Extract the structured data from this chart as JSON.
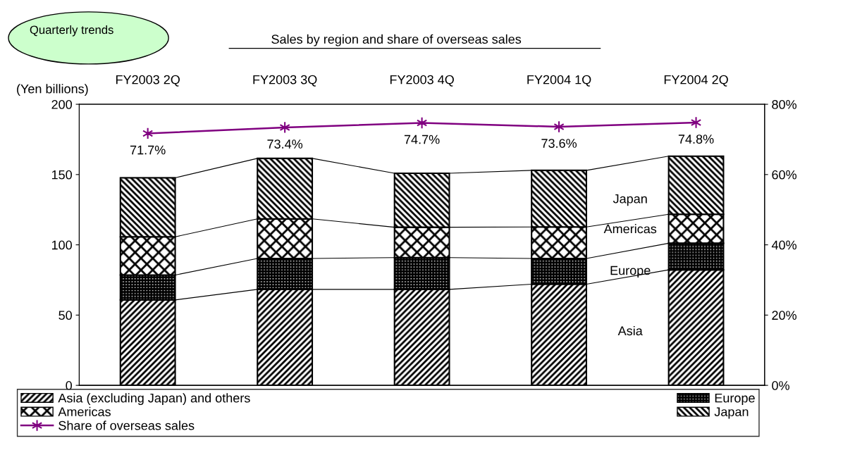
{
  "chart_data": {
    "type": "bar",
    "stacked": true,
    "title": "Sales by region and share of overseas sales",
    "ylabel": "(Yen billions)",
    "categories": [
      "FY2003 2Q",
      "FY2003 3Q",
      "FY2003 4Q",
      "FY2004 1Q",
      "FY2004 2Q"
    ],
    "series": [
      {
        "name": "Asia (excluding Japan) and others",
        "color": "#000000",
        "values": [
          60.8,
          68.3,
          68.3,
          72.0,
          82.2
        ]
      },
      {
        "name": "Europe",
        "color": "#000000",
        "values": [
          17.7,
          22.0,
          22.6,
          18.3,
          18.9
        ]
      },
      {
        "name": "Americas",
        "color": "#000000",
        "values": [
          27.2,
          28.2,
          21.6,
          22.4,
          20.6
        ]
      },
      {
        "name": "Japan",
        "color": "#000000",
        "values": [
          42.0,
          43.0,
          38.4,
          40.3,
          41.4
        ]
      },
      {
        "name": "Share of overseas sales",
        "type": "line",
        "axis": "y2",
        "color": "#800080",
        "marker": "cross",
        "values": [
          71.7,
          73.4,
          74.7,
          73.6,
          74.8
        ],
        "value_labels": [
          "71.7%",
          "73.4%",
          "74.7%",
          "73.6%",
          "74.8%"
        ]
      }
    ],
    "ylim": [
      0,
      200
    ],
    "yticks": [
      0,
      50,
      100,
      150,
      200
    ],
    "y2lim": [
      0,
      80
    ],
    "y2ticks": [
      {
        "value": 0,
        "label": "0%"
      },
      {
        "value": 20,
        "label": "20%"
      },
      {
        "value": 40,
        "label": "40%"
      },
      {
        "value": 60,
        "label": "60%"
      },
      {
        "value": 80,
        "label": "80%"
      }
    ],
    "annotations": [
      "Quarterly trends",
      "Japan",
      "Americas",
      "Europe",
      "Asia"
    ],
    "legend": "bottom",
    "grid": false
  }
}
